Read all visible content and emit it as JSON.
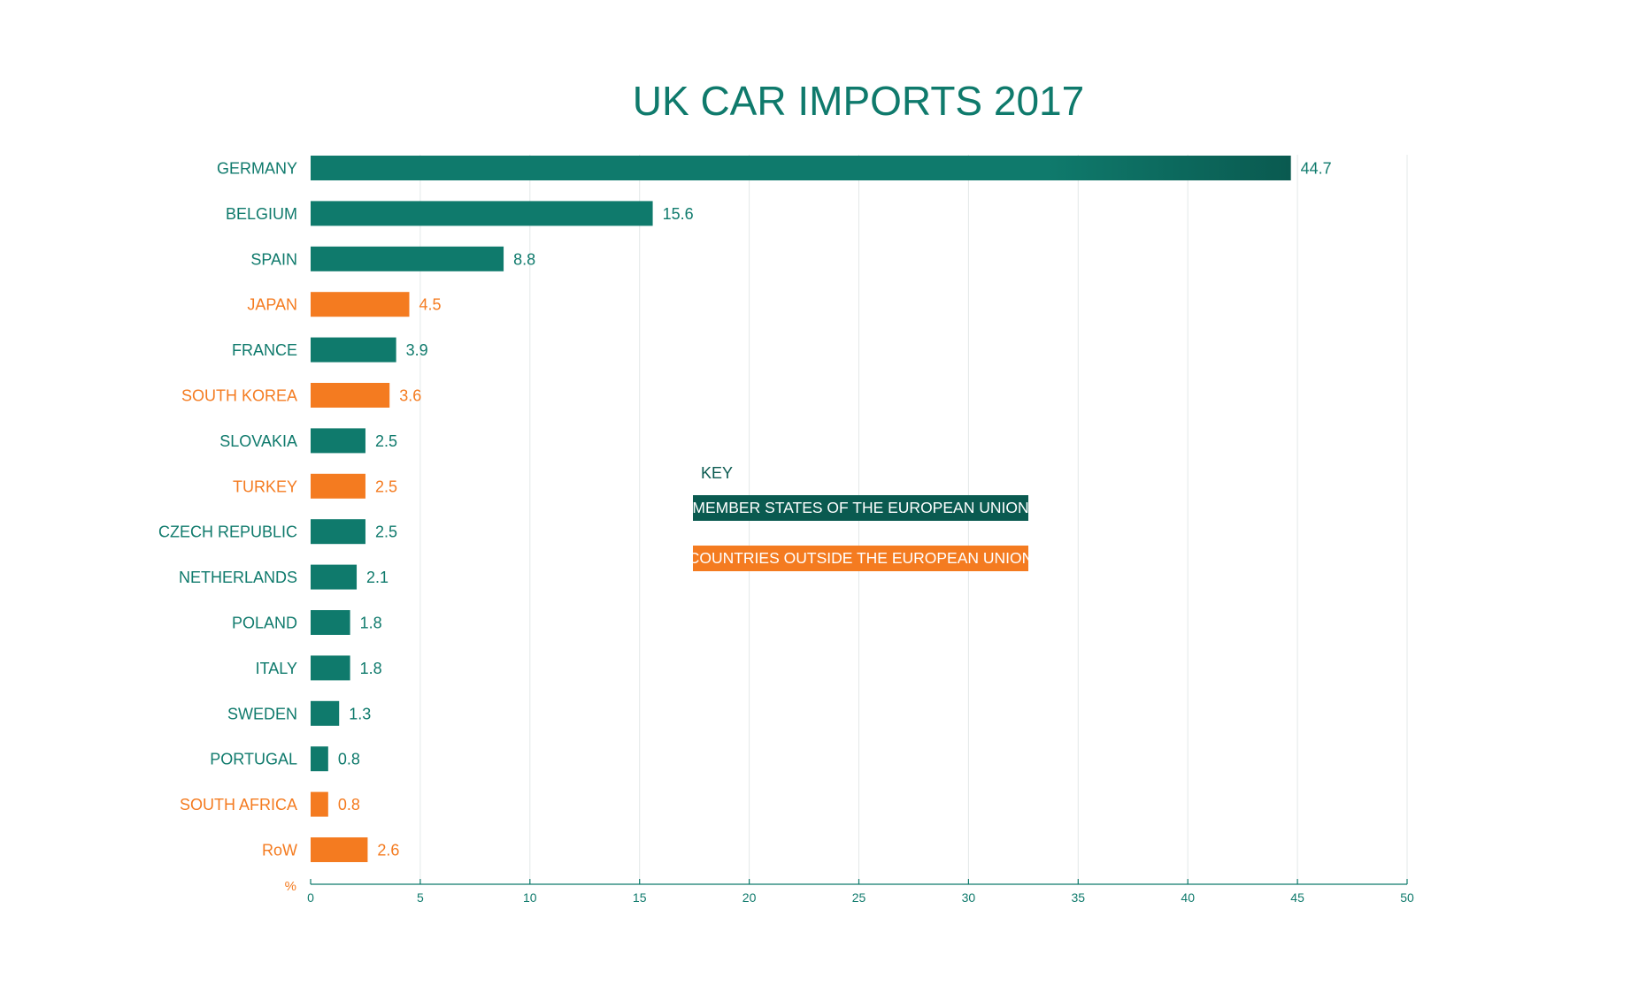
{
  "chart_data": {
    "type": "bar",
    "orientation": "horizontal",
    "title": "UK CAR IMPORTS 2017",
    "unit_label": "%",
    "xlim": [
      0,
      50
    ],
    "x_ticks": [
      0,
      5,
      10,
      15,
      20,
      25,
      30,
      35,
      40,
      45,
      50
    ],
    "grid": true,
    "categories": [
      "GERMANY",
      "BELGIUM",
      "SPAIN",
      "JAPAN",
      "FRANCE",
      "SOUTH KOREA",
      "SLOVAKIA",
      "TURKEY",
      "CZECH REPUBLIC",
      "NETHERLANDS",
      "POLAND",
      "ITALY",
      "SWEDEN",
      "PORTUGAL",
      "SOUTH AFRICA",
      "RoW"
    ],
    "values": [
      44.7,
      15.6,
      8.8,
      4.5,
      3.9,
      3.6,
      2.5,
      2.5,
      2.5,
      2.1,
      1.8,
      1.8,
      1.3,
      0.8,
      0.8,
      2.6
    ],
    "value_labels": [
      "44.7",
      "15.6",
      "8.8",
      "4.5",
      "3.9",
      "3.6",
      "2.5",
      "2.5",
      "2.5",
      "2.1",
      "1.8",
      "1.8",
      "1.3",
      "0.8",
      "0.8",
      "2.6"
    ],
    "groups": [
      "eu",
      "eu",
      "eu",
      "non_eu",
      "eu",
      "non_eu",
      "eu",
      "non_eu",
      "eu",
      "eu",
      "eu",
      "eu",
      "eu",
      "eu",
      "non_eu",
      "non_eu"
    ],
    "legend": {
      "title": "KEY",
      "placement": "center",
      "items": [
        {
          "group": "eu",
          "label": "MEMBER STATES OF THE EUROPEAN UNION"
        },
        {
          "group": "non_eu",
          "label": "COUNTRIES OUTSIDE THE EUROPEAN UNION"
        }
      ]
    }
  },
  "colors": {
    "eu": "#0f7a6c",
    "eu_dark": "#0a5a50",
    "non_eu": "#f47b20",
    "grid": "#e3e8e8",
    "axis": "#0f7a6c",
    "title": "#0f7a6c"
  }
}
